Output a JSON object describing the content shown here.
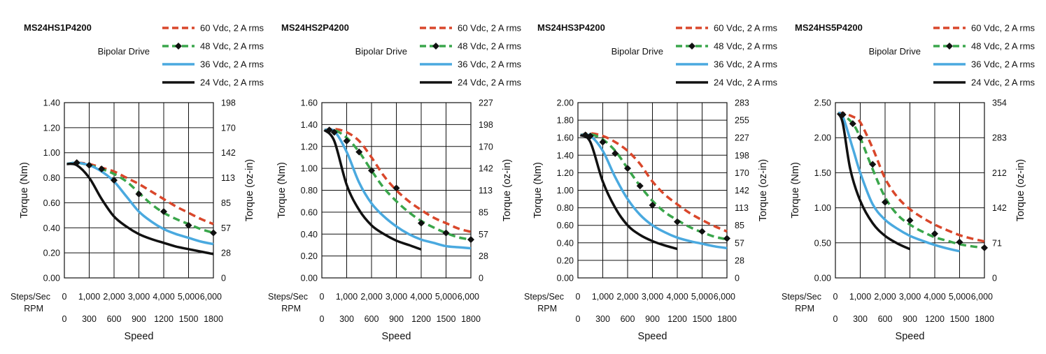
{
  "common": {
    "drive_label": "Bipolar Drive",
    "steps_label": "Steps/Sec",
    "rpm_label": "RPM",
    "xlabel": "Speed",
    "ylabel_left": "Torque (Nm)",
    "ylabel_right": "Torque (oz-in)",
    "x_ticks": [
      "0",
      "1,000",
      "2,000",
      "3,000",
      "4,000",
      "5,000",
      "6,000"
    ],
    "rpm_ticks": [
      "0",
      "300",
      "600",
      "900",
      "1200",
      "1500",
      "1800"
    ],
    "legend": [
      {
        "name": "60 Vdc, 2 A rms",
        "color": "#d9472b",
        "style": "dashed"
      },
      {
        "name": "48 Vdc, 2 A rms",
        "color": "#3aa64b",
        "style": "dashed-diamond"
      },
      {
        "name": "36 Vdc, 2 A rms",
        "color": "#4aa9df",
        "style": "solid"
      },
      {
        "name": "24 Vdc, 2 A rms",
        "color": "#111111",
        "style": "solid"
      }
    ]
  },
  "chart_data": [
    {
      "type": "line",
      "title": "MS24HS1P4200",
      "xlabel": "Speed",
      "ylabel": "Torque (Nm)",
      "xlim": [
        0,
        6000
      ],
      "ylim": [
        0,
        1.4
      ],
      "y_ticks": [
        "0.00",
        "0.20",
        "0.40",
        "0.60",
        "0.80",
        "1.00",
        "1.20",
        "1.40"
      ],
      "y2_ticks": [
        "0",
        "28",
        "57",
        "85",
        "113",
        "142",
        "170",
        "198"
      ],
      "series": [
        {
          "name": "60 Vdc, 2 A rms",
          "x": [
            100,
            500,
            1000,
            1500,
            2000,
            2500,
            3000,
            3500,
            4000,
            4500,
            5000,
            5500,
            6000
          ],
          "y": [
            0.91,
            0.92,
            0.91,
            0.88,
            0.85,
            0.8,
            0.75,
            0.69,
            0.63,
            0.57,
            0.52,
            0.47,
            0.43
          ]
        },
        {
          "name": "48 Vdc, 2 A rms",
          "x": [
            100,
            500,
            1000,
            1500,
            2000,
            2500,
            3000,
            3500,
            4000,
            4500,
            5000,
            5500,
            6000
          ],
          "y": [
            0.91,
            0.92,
            0.9,
            0.87,
            0.83,
            0.77,
            0.68,
            0.59,
            0.52,
            0.47,
            0.43,
            0.39,
            0.36
          ]
        },
        {
          "name": "36 Vdc, 2 A rms",
          "x": [
            100,
            500,
            1000,
            1500,
            2000,
            2500,
            3000,
            3500,
            4000,
            4500,
            5000,
            5500,
            6000
          ],
          "y": [
            0.91,
            0.92,
            0.9,
            0.85,
            0.77,
            0.65,
            0.53,
            0.45,
            0.39,
            0.35,
            0.32,
            0.29,
            0.27
          ]
        },
        {
          "name": "24 Vdc, 2 A rms",
          "x": [
            100,
            500,
            1000,
            1500,
            2000,
            2500,
            3000,
            3500,
            4000,
            4500,
            5000,
            5500,
            6000
          ],
          "y": [
            0.91,
            0.9,
            0.8,
            0.63,
            0.49,
            0.41,
            0.35,
            0.31,
            0.28,
            0.25,
            0.23,
            0.21,
            0.19
          ]
        }
      ],
      "markers": {
        "x": [
          500,
          1000,
          1500,
          2000,
          3000,
          4000,
          5000,
          6000
        ],
        "y": [
          0.92,
          0.9,
          0.87,
          0.78,
          0.67,
          0.53,
          0.42,
          0.36
        ]
      }
    },
    {
      "type": "line",
      "title": "MS24HS2P4200",
      "xlabel": "Speed",
      "ylabel": "Torque (Nm)",
      "xlim": [
        0,
        6000
      ],
      "ylim": [
        0,
        1.6
      ],
      "y_ticks": [
        "0.00",
        "0.20",
        "0.40",
        "0.60",
        "0.80",
        "1.00",
        "1.20",
        "1.40",
        "1.60"
      ],
      "y2_ticks": [
        "0",
        "28",
        "57",
        "85",
        "113",
        "142",
        "170",
        "198",
        "227"
      ],
      "series": [
        {
          "name": "60 Vdc, 2 A rms",
          "x": [
            100,
            500,
            1000,
            1500,
            2000,
            2500,
            3000,
            3500,
            4000,
            4500,
            5000,
            5500,
            6000
          ],
          "y": [
            1.35,
            1.36,
            1.33,
            1.25,
            1.1,
            0.93,
            0.8,
            0.7,
            0.62,
            0.55,
            0.5,
            0.45,
            0.42
          ]
        },
        {
          "name": "48 Vdc, 2 A rms",
          "x": [
            100,
            500,
            1000,
            1500,
            2000,
            2500,
            3000,
            3500,
            4000,
            4500,
            5000,
            5500,
            6000
          ],
          "y": [
            1.35,
            1.35,
            1.28,
            1.15,
            0.98,
            0.82,
            0.7,
            0.6,
            0.52,
            0.46,
            0.41,
            0.37,
            0.35
          ]
        },
        {
          "name": "36 Vdc, 2 A rms",
          "x": [
            100,
            500,
            1000,
            1500,
            2000,
            2500,
            3000,
            3500,
            4000,
            4500,
            5000,
            5500,
            6000
          ],
          "y": [
            1.35,
            1.34,
            1.15,
            0.87,
            0.68,
            0.56,
            0.47,
            0.4,
            0.35,
            0.32,
            0.29,
            0.28,
            0.27
          ]
        },
        {
          "name": "24 Vdc, 2 A rms",
          "x": [
            100,
            500,
            1000,
            1500,
            2000,
            2500,
            3000,
            3500,
            4000
          ],
          "y": [
            1.35,
            1.25,
            0.85,
            0.62,
            0.48,
            0.4,
            0.34,
            0.3,
            0.26
          ]
        }
      ],
      "markers": {
        "x": [
          300,
          500,
          1000,
          1500,
          2000,
          3000,
          4000,
          5000,
          6000
        ],
        "y": [
          1.35,
          1.33,
          1.25,
          1.15,
          0.98,
          0.82,
          0.5,
          0.41,
          0.35
        ]
      }
    },
    {
      "type": "line",
      "title": "MS24HS3P4200",
      "xlabel": "Speed",
      "ylabel": "Torque (Nm)",
      "xlim": [
        0,
        6000
      ],
      "ylim": [
        0,
        2.0
      ],
      "y_ticks": [
        "0.00",
        "0.20",
        "0.40",
        "0.60",
        "0.80",
        "1.00",
        "1.20",
        "1.40",
        "1.60",
        "1.80",
        "2.00"
      ],
      "y2_ticks": [
        "0",
        "28",
        "57",
        "85",
        "113",
        "142",
        "170",
        "198",
        "227",
        "255",
        "283"
      ],
      "series": [
        {
          "name": "60 Vdc, 2 A rms",
          "x": [
            100,
            500,
            1000,
            1500,
            2000,
            2500,
            3000,
            3500,
            4000,
            4500,
            5000,
            5500,
            6000
          ],
          "y": [
            1.63,
            1.65,
            1.62,
            1.55,
            1.45,
            1.3,
            1.1,
            0.95,
            0.84,
            0.74,
            0.66,
            0.59,
            0.53
          ]
        },
        {
          "name": "48 Vdc, 2 A rms",
          "x": [
            100,
            500,
            1000,
            1500,
            2000,
            2500,
            3000,
            3500,
            4000,
            4500,
            5000,
            5500,
            6000
          ],
          "y": [
            1.63,
            1.64,
            1.58,
            1.45,
            1.25,
            1.05,
            0.88,
            0.75,
            0.66,
            0.58,
            0.52,
            0.47,
            0.44
          ]
        },
        {
          "name": "36 Vdc, 2 A rms",
          "x": [
            100,
            500,
            1000,
            1500,
            2000,
            2500,
            3000,
            3500,
            4000,
            4500,
            5000,
            5500,
            6000
          ],
          "y": [
            1.63,
            1.62,
            1.45,
            1.15,
            0.9,
            0.72,
            0.6,
            0.52,
            0.46,
            0.42,
            0.39,
            0.36,
            0.34
          ]
        },
        {
          "name": "24 Vdc, 2 A rms",
          "x": [
            100,
            500,
            1000,
            1500,
            2000,
            2500,
            3000,
            3500,
            4000
          ],
          "y": [
            1.63,
            1.55,
            1.1,
            0.8,
            0.6,
            0.49,
            0.42,
            0.37,
            0.33
          ]
        }
      ],
      "markers": {
        "x": [
          300,
          500,
          1000,
          1500,
          2000,
          2500,
          3000,
          4000,
          5000,
          6000
        ],
        "y": [
          1.63,
          1.62,
          1.55,
          1.42,
          1.25,
          1.05,
          0.83,
          0.64,
          0.53,
          0.45
        ]
      }
    },
    {
      "type": "line",
      "title": "MS24HS5P4200",
      "xlabel": "Speed",
      "ylabel": "Torque (Nm)",
      "xlim": [
        0,
        6000
      ],
      "ylim": [
        0,
        2.5
      ],
      "y_ticks": [
        "0.00",
        "0.50",
        "1.00",
        "1.50",
        "2.00",
        "2.50"
      ],
      "y2_ticks": [
        "0",
        "71",
        "142",
        "212",
        "283",
        "354"
      ],
      "series": [
        {
          "name": "60 Vdc, 2 A rms",
          "x": [
            100,
            300,
            700,
            1000,
            1500,
            2000,
            2500,
            3000,
            3500,
            4000,
            4500,
            5000,
            5500,
            6000
          ],
          "y": [
            2.35,
            2.35,
            2.3,
            2.22,
            1.85,
            1.42,
            1.15,
            0.98,
            0.86,
            0.76,
            0.68,
            0.61,
            0.56,
            0.52
          ]
        },
        {
          "name": "48 Vdc, 2 A rms",
          "x": [
            100,
            300,
            700,
            1000,
            1500,
            2000,
            2500,
            3000,
            3500,
            4000,
            4500,
            5000,
            5500,
            6000
          ],
          "y": [
            2.35,
            2.33,
            2.2,
            2.0,
            1.55,
            1.15,
            0.9,
            0.76,
            0.66,
            0.58,
            0.53,
            0.48,
            0.45,
            0.43
          ]
        },
        {
          "name": "36 Vdc, 2 A rms",
          "x": [
            100,
            300,
            700,
            1000,
            1500,
            2000,
            2500,
            3000,
            3500,
            4000,
            4500,
            5000
          ],
          "y": [
            2.35,
            2.3,
            1.85,
            1.5,
            1.05,
            0.83,
            0.7,
            0.6,
            0.53,
            0.47,
            0.42,
            0.38
          ]
        },
        {
          "name": "24 Vdc, 2 A rms",
          "x": [
            100,
            300,
            600,
            1000,
            1500,
            2000,
            2500,
            3000
          ],
          "y": [
            2.35,
            2.2,
            1.55,
            1.1,
            0.78,
            0.6,
            0.49,
            0.41
          ]
        }
      ],
      "markers": {
        "x": [
          300,
          700,
          1000,
          1500,
          2000,
          3000,
          4000,
          5000,
          6000
        ],
        "y": [
          2.33,
          2.2,
          2.0,
          1.62,
          1.08,
          0.82,
          0.63,
          0.51,
          0.43
        ]
      }
    }
  ]
}
